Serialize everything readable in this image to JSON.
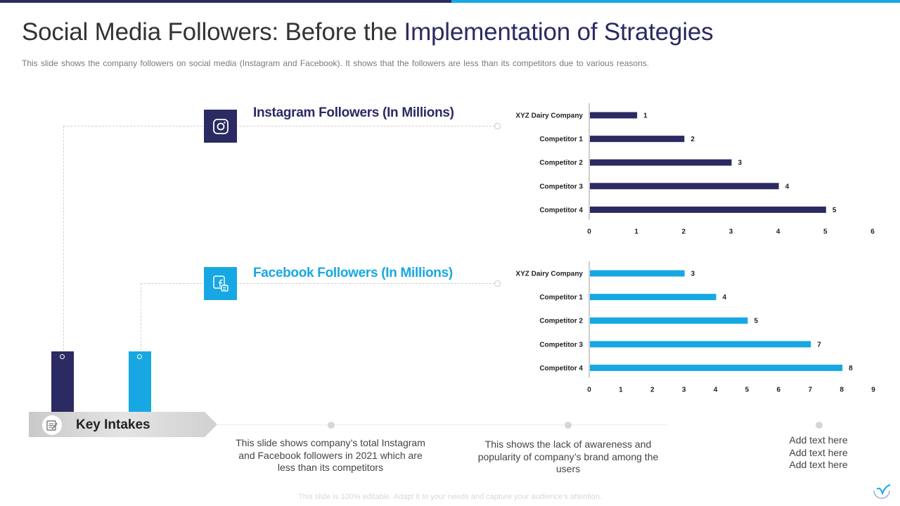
{
  "title": {
    "part1": "Social Media Followers: Before the ",
    "part2": "Implementation of Strategies"
  },
  "subtitle": "This slide shows the company followers on social media (Instagram and Facebook). It shows that the followers  are less than its competitors due to various reasons.",
  "colors": {
    "instagram": "#2b2a63",
    "facebook": "#17a8e3",
    "accent_dark": "#2b2a63",
    "accent_light": "#17a8e3"
  },
  "icons": {
    "instagram": "instagram-icon",
    "facebook": "facebook-icon",
    "key_intakes": "notepad-icon"
  },
  "chart_data": [
    {
      "type": "bar",
      "orientation": "horizontal",
      "title": "Instagram Followers (In Millions)",
      "categories": [
        "XYZ Dairy Company",
        "Competitor 1",
        "Competitor 2",
        "Competitor 3",
        "Competitor 4"
      ],
      "values": [
        1,
        2,
        3,
        4,
        5
      ],
      "xlim": [
        0,
        6
      ],
      "ticks": [
        0,
        1,
        2,
        3,
        4,
        5,
        6
      ],
      "grid": false,
      "color": "#2b2a63"
    },
    {
      "type": "bar",
      "orientation": "horizontal",
      "title": "Facebook Followers (In Millions)",
      "categories": [
        "XYZ Dairy Company",
        "Competitor 1",
        "Competitor 2",
        "Competitor 3",
        "Competitor 4"
      ],
      "values": [
        3,
        4,
        5,
        7,
        8
      ],
      "xlim": [
        0,
        9
      ],
      "ticks": [
        0,
        1,
        2,
        3,
        4,
        5,
        6,
        7,
        8,
        9
      ],
      "grid": false,
      "color": "#17a8e3"
    }
  ],
  "key_intakes": {
    "label": "Key Intakes",
    "items": [
      "This slide shows company’s total Instagram and Facebook followers in 2021 which are less than its competitors",
      "This shows the lack of awareness and popularity of company’s brand among the users",
      "Add text here\nAdd text here\nAdd text here"
    ]
  },
  "footer": "This slide is 100% editable. Adapt it to your needs and capture your audience’s attention."
}
